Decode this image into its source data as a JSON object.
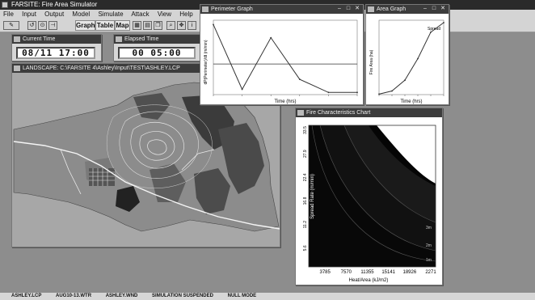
{
  "app": {
    "title": "FARSITE: Fire Area Simulator"
  },
  "menu": [
    "File",
    "Input",
    "Output",
    "Model",
    "Simulate",
    "Attack",
    "View",
    "Help"
  ],
  "toolbar": {
    "graph_label": "Graph",
    "table_label": "Table",
    "map_label": "Map"
  },
  "current_time": {
    "title": "Current Time",
    "value": "08/11  17:00"
  },
  "elapsed_time": {
    "title": "Elapsed Time",
    "value": "00  05:00"
  },
  "landscape": {
    "title": "LANDSCAPE: C:\\FARSITE 4\\Ashley\\Input\\TEST\\ASHLEY.LCP"
  },
  "perimeter_graph": {
    "title": "Perimeter Graph",
    "xlabel": "Time (hrs)",
    "ylabel": "dP(Perimeter)/dt (m/min)",
    "chart_data": {
      "type": "line",
      "x": [
        0,
        1,
        2,
        3,
        4,
        5
      ],
      "y": [
        160,
        12,
        130,
        35,
        5,
        5
      ],
      "reference_line": 70,
      "ylim": [
        0,
        170
      ]
    }
  },
  "area_graph": {
    "title": "Area Graph",
    "xlabel": "Time (hrs)",
    "ylabel": "Fire Area (ha)",
    "annotation": "Spread",
    "chart_data": {
      "type": "line",
      "x": [
        0,
        1,
        2,
        3,
        4,
        5
      ],
      "y": [
        2,
        15,
        60,
        150,
        260,
        300
      ],
      "ylim": [
        0,
        310
      ]
    }
  },
  "fire_chart": {
    "title": "Fire Characteristics Chart",
    "xlabel": "Heat/Area (kJ/m2)",
    "ylabel": "Spread Rate (m/min)",
    "chart_data": {
      "type": "heatmap",
      "xticks": [
        "3785",
        "7570",
        "11355",
        "15141",
        "18926",
        "2271"
      ],
      "yticks": [
        "5.6",
        "11.2",
        "16.8",
        "22.4",
        "27.9",
        "33.5"
      ],
      "band_labels": [
        "1m",
        "2m",
        "3m"
      ]
    }
  },
  "status": [
    "ASHLEY.LCP",
    "AUG10-13.WTR",
    "ASHLEY.WND",
    "SIMULATION SUSPENDED",
    "NULL MODE"
  ]
}
